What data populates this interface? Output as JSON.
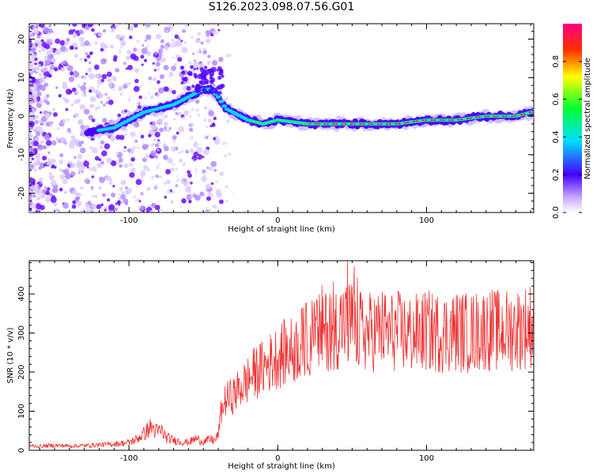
{
  "title": "S126.2023.098.07.56.G01",
  "colors": {
    "ridge": "#e8a020",
    "spectrum_low": "#d9c8f5",
    "spectrum_mid": "#5a00ff",
    "snr_line": "#ee3333"
  },
  "chart_data": [
    {
      "type": "heatmap",
      "title": "S126.2023.098.07.56.G01",
      "xlabel": "Height of straight line (km)",
      "ylabel": "Frequency (Hz)",
      "xlim": [
        -167,
        172
      ],
      "ylim": [
        -25,
        24
      ],
      "xticks": [
        -100,
        0,
        100
      ],
      "yticks": [
        20,
        10,
        0,
        -10,
        -20
      ],
      "colorbar": {
        "label": "Normalized spectral amplitude",
        "range": [
          0.0,
          1.0
        ],
        "ticks": [
          "0.0",
          "0.2",
          "0.4",
          "0.6",
          "0.8"
        ],
        "colormap": "rainbow"
      },
      "ridge": {
        "x": [
          -125,
          -110,
          -100,
          -90,
          -80,
          -70,
          -60,
          -50,
          -45,
          -40,
          -35,
          -30,
          -20,
          -10,
          0,
          20,
          40,
          60,
          80,
          100,
          120,
          140,
          160,
          170
        ],
        "frequency": [
          -4,
          -3,
          -1,
          1,
          2,
          3,
          5,
          7,
          7,
          5,
          2,
          1,
          -1,
          -2,
          -1,
          -2,
          -2,
          -2,
          -2,
          -1,
          -1,
          0,
          0,
          1
        ]
      }
    },
    {
      "type": "line",
      "xlabel": "Height of straight line (km)",
      "ylabel": "SNR (10 * v/v)",
      "xlim": [
        -167,
        172
      ],
      "ylim": [
        0,
        485
      ],
      "xticks": [
        -100,
        0,
        100
      ],
      "yticks": [
        0,
        100,
        200,
        300,
        400
      ],
      "series": [
        {
          "x": [
            -167,
            -160,
            -150,
            -140,
            -130,
            -120,
            -110,
            -100,
            -95,
            -90,
            -85,
            -82,
            -78,
            -75,
            -70,
            -65,
            -60,
            -55,
            -50,
            -45,
            -42,
            -40,
            -38,
            -35,
            -30,
            -25,
            -20,
            -15,
            -10,
            -5,
            0,
            5,
            10,
            15,
            20,
            25,
            30,
            35,
            40,
            45,
            50,
            55,
            60,
            65,
            70,
            75,
            80,
            85,
            90,
            95,
            100,
            110,
            120,
            130,
            140,
            150,
            160,
            170
          ],
          "values": [
            12,
            10,
            13,
            11,
            12,
            14,
            16,
            20,
            28,
            42,
            60,
            48,
            50,
            32,
            26,
            22,
            20,
            30,
            22,
            28,
            25,
            40,
            100,
            130,
            140,
            160,
            180,
            200,
            210,
            225,
            240,
            250,
            255,
            270,
            285,
            295,
            300,
            310,
            315,
            330,
            320,
            305,
            300,
            305,
            310,
            300,
            305,
            300,
            295,
            300,
            305,
            300,
            305,
            300,
            310,
            305,
            310,
            320
          ]
        }
      ]
    }
  ]
}
